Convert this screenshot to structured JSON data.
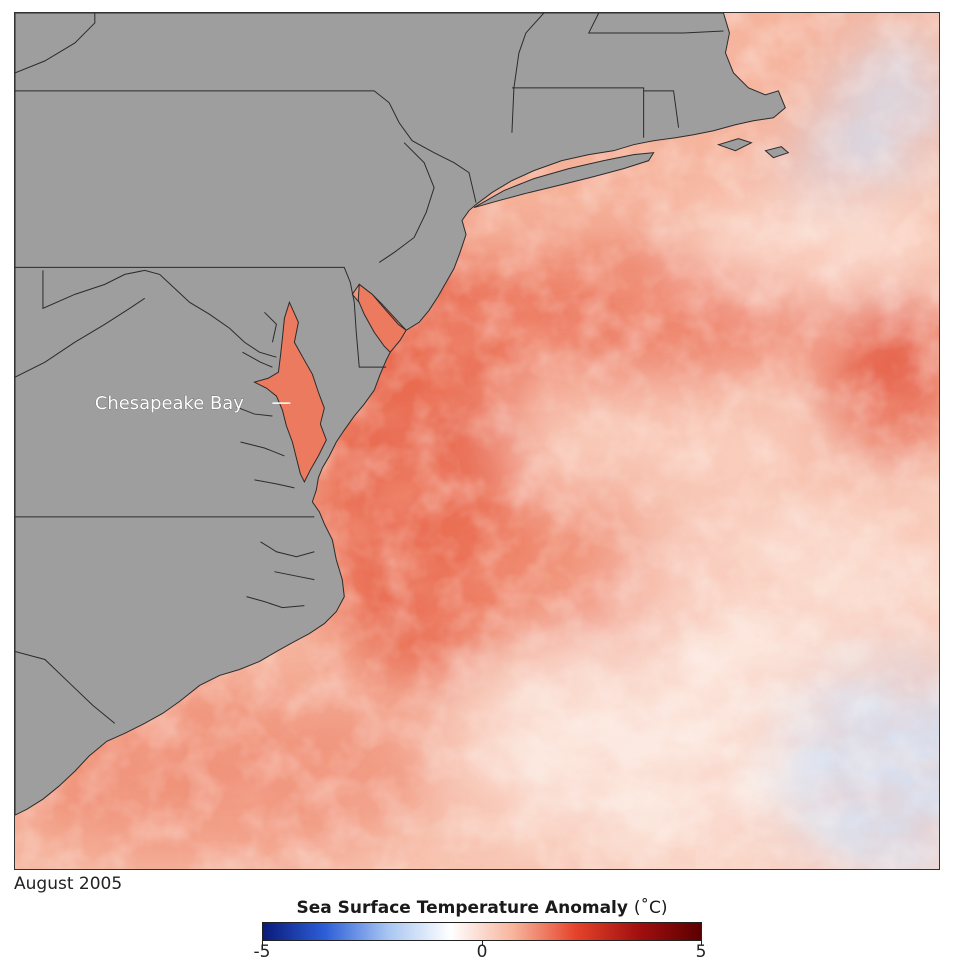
{
  "map": {
    "place_labels": {
      "chesapeake_bay": "Chesapeake Bay"
    },
    "colors": {
      "land": "#9e9e9e",
      "borders": "#2b2b2b",
      "warm_strong": "#e6553a",
      "warm_mid": "#f29a7e",
      "warm_light": "#fbd2c0",
      "neutral": "#fdf3ee",
      "cool_light": "#c9dcf5"
    }
  },
  "caption": {
    "date": "August 2005"
  },
  "legend": {
    "title": "Sea Surface Temperature Anomaly",
    "unit": "(˚C)",
    "min_label": "-5",
    "mid_label": "0",
    "max_label": "5",
    "min_value": -5,
    "max_value": 5,
    "colors": [
      "#0a1a7a",
      "#2e5fd8",
      "#a8c6f2",
      "#ffffff",
      "#f7b49c",
      "#e5432a",
      "#a20f0f",
      "#5c0000"
    ]
  }
}
